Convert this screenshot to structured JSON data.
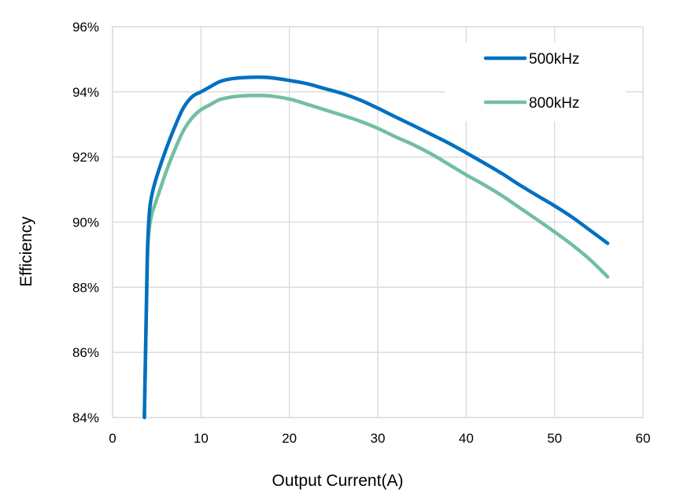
{
  "chart_data": {
    "type": "line",
    "title": "",
    "xlabel": "Output Current(A)",
    "ylabel": "Efficiency",
    "xlim": [
      0,
      60
    ],
    "ylim": [
      84,
      96
    ],
    "x_ticks": [
      0,
      10,
      20,
      30,
      40,
      50,
      60
    ],
    "y_ticks": [
      84,
      86,
      88,
      90,
      92,
      94,
      96
    ],
    "x_tick_labels": [
      "0",
      "10",
      "20",
      "30",
      "40",
      "50",
      "60"
    ],
    "y_tick_labels": [
      "84%",
      "86%",
      "88%",
      "90%",
      "92%",
      "94%",
      "96%"
    ],
    "grid": true,
    "legend_position": "top-right",
    "series": [
      {
        "name": "500kHz",
        "color": "#0070C0",
        "x": [
          3.6,
          3.9,
          4.0,
          4.2,
          4.5,
          5,
          6,
          7,
          8,
          9,
          10,
          11,
          12,
          13,
          14,
          15,
          16,
          17,
          18,
          20,
          22,
          24,
          26,
          28,
          30,
          32,
          34,
          36,
          38,
          40,
          42,
          44,
          46,
          48,
          50,
          52,
          54,
          56
        ],
        "y": [
          84.0,
          88.5,
          89.5,
          90.4,
          90.9,
          91.4,
          92.2,
          92.9,
          93.5,
          93.85,
          94.0,
          94.15,
          94.3,
          94.38,
          94.42,
          94.44,
          94.45,
          94.45,
          94.43,
          94.35,
          94.25,
          94.1,
          93.95,
          93.75,
          93.5,
          93.23,
          92.97,
          92.7,
          92.43,
          92.13,
          91.82,
          91.5,
          91.15,
          90.82,
          90.5,
          90.15,
          89.75,
          89.35
        ]
      },
      {
        "name": "800kHz",
        "color": "#72BF9E",
        "x": [
          3.6,
          3.9,
          4.0,
          4.2,
          4.5,
          5,
          6,
          7,
          8,
          9,
          10,
          11,
          12,
          13,
          14,
          15,
          16,
          17,
          18,
          20,
          22,
          24,
          26,
          28,
          30,
          32,
          34,
          36,
          38,
          40,
          42,
          44,
          46,
          48,
          50,
          52,
          54,
          56
        ],
        "y": [
          84.0,
          88.3,
          89.3,
          89.9,
          90.3,
          90.7,
          91.5,
          92.2,
          92.8,
          93.2,
          93.45,
          93.6,
          93.75,
          93.82,
          93.86,
          93.88,
          93.89,
          93.89,
          93.87,
          93.78,
          93.62,
          93.45,
          93.28,
          93.1,
          92.88,
          92.62,
          92.38,
          92.1,
          91.78,
          91.45,
          91.15,
          90.82,
          90.45,
          90.08,
          89.7,
          89.3,
          88.85,
          88.32
        ]
      }
    ]
  }
}
